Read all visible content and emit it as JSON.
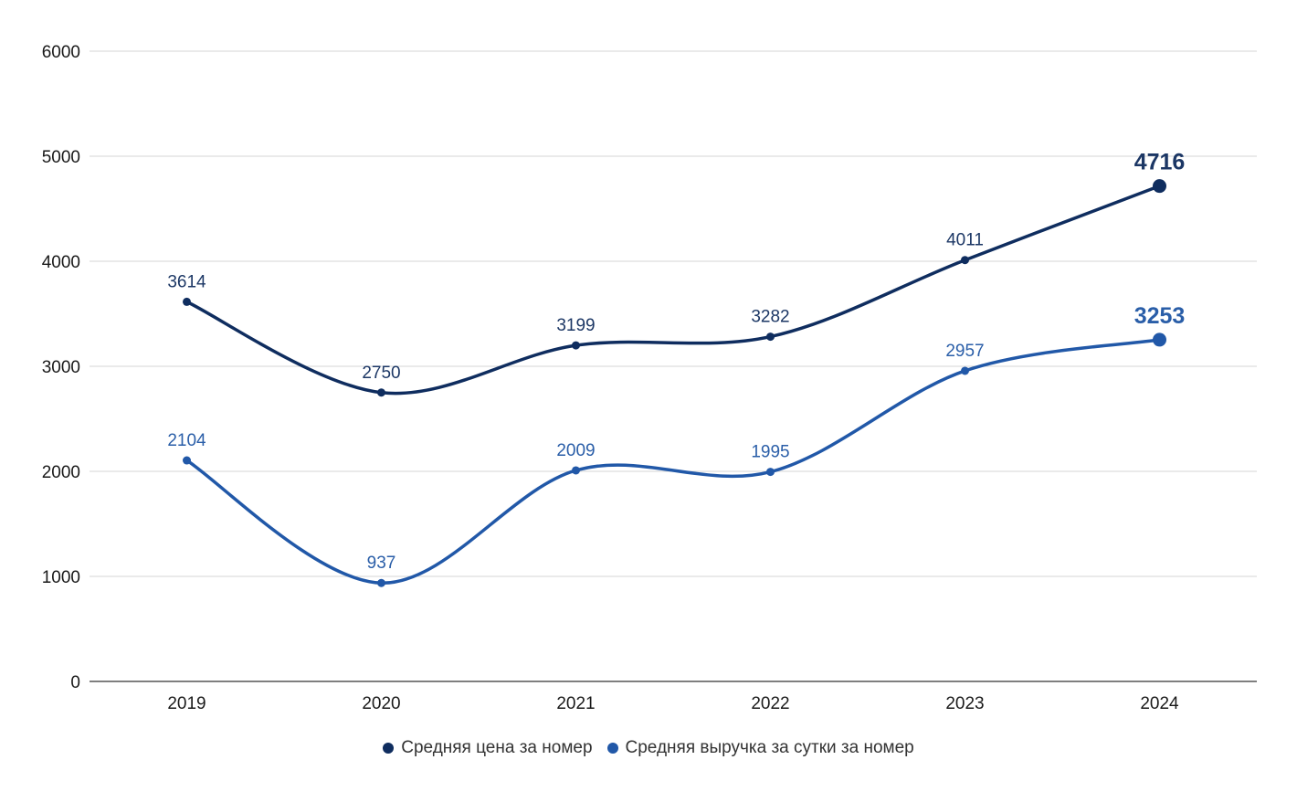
{
  "chart_data": {
    "type": "line",
    "categories": [
      "2019",
      "2020",
      "2021",
      "2022",
      "2023",
      "2024"
    ],
    "ylim": [
      0,
      6000
    ],
    "yticks": [
      0,
      1000,
      2000,
      3000,
      4000,
      5000,
      6000
    ],
    "grid": true,
    "legend_position": "bottom",
    "series": [
      {
        "name": "Средняя цена за номер",
        "color": "#0f2d5f",
        "values": [
          3614,
          2750,
          3199,
          3282,
          4011,
          4716
        ],
        "labels": [
          "3614",
          "2750",
          "3199",
          "3282",
          "4011",
          "4716"
        ]
      },
      {
        "name": "Средняя выручка за сутки за номер",
        "color": "#2158a8",
        "values": [
          2104,
          937,
          2009,
          1995,
          2957,
          3253
        ],
        "labels": [
          "2104",
          "937",
          "2009",
          "1995",
          "2957",
          "3253"
        ]
      }
    ]
  }
}
